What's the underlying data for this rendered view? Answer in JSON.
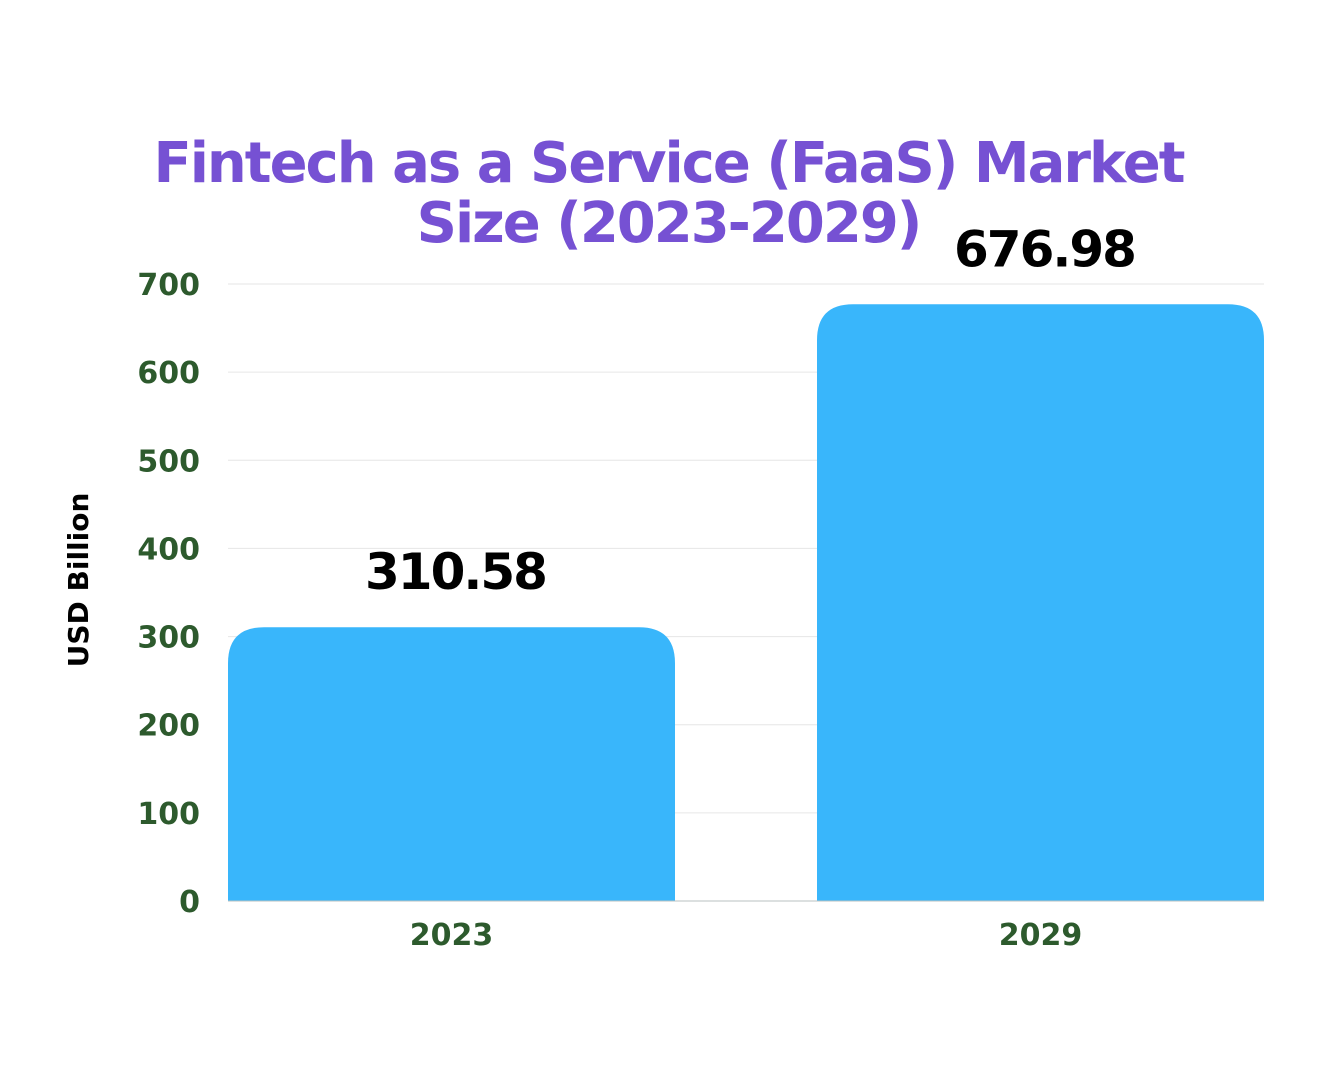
{
  "chart_data": {
    "type": "bar",
    "title_lines": [
      "Fintech as a Service (FaaS) Market",
      "Size (2023-2029)"
    ],
    "categories": [
      "2023",
      "2029"
    ],
    "values": [
      310.58,
      676.98
    ],
    "value_labels": [
      "310.58",
      "676.98"
    ],
    "xlabel": "",
    "ylabel": "USD Billion",
    "ylim": [
      0,
      700
    ],
    "yticks": [
      0,
      100,
      200,
      300,
      400,
      500,
      600,
      700
    ],
    "ytick_labels": [
      "0",
      "100",
      "200",
      "300",
      "400",
      "500",
      "600",
      "700"
    ],
    "grid": true,
    "legend": "none",
    "colors": {
      "bar": "#39b6fb",
      "title": "#7651d3",
      "tick": "#2d5a2d",
      "data_label": "#000000",
      "axis_title": "#000000",
      "grid": "#e6e6e6"
    }
  }
}
